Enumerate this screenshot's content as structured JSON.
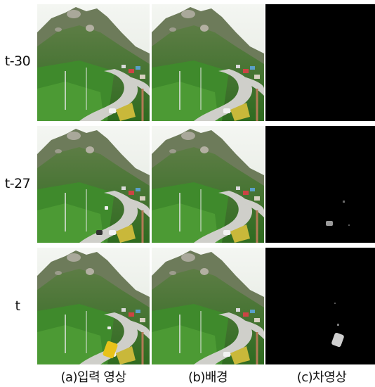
{
  "rows": [
    {
      "label": "t-30"
    },
    {
      "label": "t-27"
    },
    {
      "label": "t"
    }
  ],
  "columns": [
    {
      "label": "(a)입력 영상"
    },
    {
      "label": "(b)배경"
    },
    {
      "label": "(c)차영상"
    }
  ],
  "colors": {
    "sky": "#e9efe6",
    "mountain": "#6f7f5c",
    "forest": "#3f7a2a",
    "road": "#c9c9c4",
    "background_diff": "#000000",
    "bus": "#e8c21a"
  }
}
